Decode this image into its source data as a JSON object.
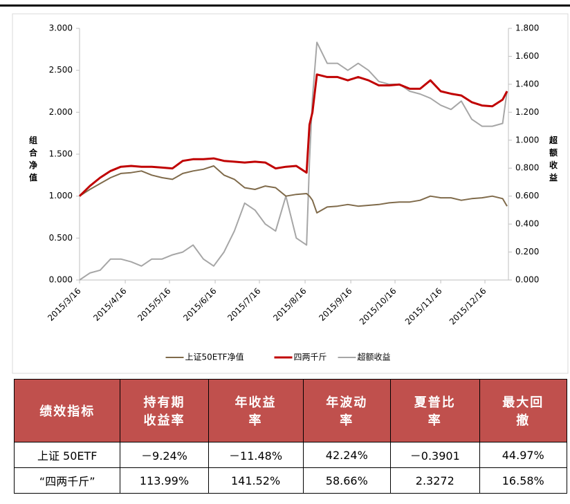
{
  "chart_data": {
    "type": "line",
    "y_label": "组合净值",
    "y2_label": "超额收益",
    "x": [
      "2015/3/16",
      "2015/3/23",
      "2015/3/30",
      "2015/4/6",
      "2015/4/13",
      "2015/4/20",
      "2015/4/27",
      "2015/5/4",
      "2015/5/11",
      "2015/5/18",
      "2015/5/25",
      "2015/6/1",
      "2015/6/8",
      "2015/6/15",
      "2015/6/22",
      "2015/6/29",
      "2015/7/6",
      "2015/7/13",
      "2015/7/20",
      "2015/7/27",
      "2015/8/3",
      "2015/8/10",
      "2015/8/17",
      "2015/8/19",
      "2015/8/21",
      "2015/8/24",
      "2015/8/31",
      "2015/9/7",
      "2015/9/14",
      "2015/9/21",
      "2015/9/28",
      "2015/10/5",
      "2015/10/12",
      "2015/10/19",
      "2015/10/26",
      "2015/11/2",
      "2015/11/9",
      "2015/11/16",
      "2015/11/23",
      "2015/11/30",
      "2015/12/7",
      "2015/12/14",
      "2015/12/21",
      "2015/12/28",
      "2015/12/31"
    ],
    "xlim": [
      "2015/3/16",
      "2015/12/31"
    ],
    "xticks": [
      "2015/3/16",
      "2015/4/16",
      "2015/5/16",
      "2015/6/16",
      "2015/7/16",
      "2015/8/16",
      "2015/9/16",
      "2015/10/16",
      "2015/11/16",
      "2015/12/16"
    ],
    "ylim": [
      0,
      3
    ],
    "yticks": [
      {
        "value": 0,
        "label": "0.000"
      },
      {
        "value": 0.5,
        "label": "0.500"
      },
      {
        "value": 1,
        "label": "1.000"
      },
      {
        "value": 1.5,
        "label": "1.500"
      },
      {
        "value": 2,
        "label": "2.000"
      },
      {
        "value": 2.5,
        "label": "2.500"
      },
      {
        "value": 3,
        "label": "3.000"
      }
    ],
    "y2lim": [
      0,
      1.8
    ],
    "y2ticks": [
      {
        "value": 0,
        "label": "0.000"
      },
      {
        "value": 0.2,
        "label": "0.200"
      },
      {
        "value": 0.4,
        "label": "0.400"
      },
      {
        "value": 0.6,
        "label": "0.600"
      },
      {
        "value": 0.8,
        "label": "0.800"
      },
      {
        "value": 1,
        "label": "1.000"
      },
      {
        "value": 1.2,
        "label": "1.200"
      },
      {
        "value": 1.4,
        "label": "1.400"
      },
      {
        "value": 1.6,
        "label": "1.600"
      },
      {
        "value": 1.8,
        "label": "1.800"
      }
    ],
    "legend": "bottom",
    "series": [
      {
        "name": "上证50ETF净值",
        "color": "#7f6a4a",
        "values": [
          1.0,
          1.08,
          1.15,
          1.22,
          1.27,
          1.28,
          1.3,
          1.25,
          1.22,
          1.2,
          1.27,
          1.3,
          1.32,
          1.36,
          1.25,
          1.2,
          1.1,
          1.08,
          1.12,
          1.1,
          1.0,
          1.02,
          1.03,
          1.0,
          0.95,
          0.8,
          0.87,
          0.88,
          0.9,
          0.88,
          0.89,
          0.9,
          0.92,
          0.93,
          0.93,
          0.95,
          1.0,
          0.98,
          0.98,
          0.95,
          0.97,
          0.98,
          1.0,
          0.97,
          0.88
        ]
      },
      {
        "name": "四两千斤",
        "color": "#c00000",
        "values": [
          1.0,
          1.12,
          1.22,
          1.3,
          1.35,
          1.36,
          1.35,
          1.35,
          1.34,
          1.33,
          1.42,
          1.44,
          1.44,
          1.45,
          1.42,
          1.41,
          1.4,
          1.41,
          1.4,
          1.33,
          1.35,
          1.36,
          1.28,
          1.85,
          2.0,
          2.45,
          2.42,
          2.42,
          2.38,
          2.42,
          2.38,
          2.32,
          2.32,
          2.33,
          2.28,
          2.28,
          2.38,
          2.25,
          2.22,
          2.2,
          2.12,
          2.08,
          2.07,
          2.15,
          2.25
        ]
      },
      {
        "name": "超额收益",
        "color": "#a6a6a6",
        "axis": "y2",
        "values": [
          0.0,
          0.05,
          0.07,
          0.15,
          0.15,
          0.13,
          0.1,
          0.15,
          0.15,
          0.18,
          0.2,
          0.25,
          0.15,
          0.1,
          0.2,
          0.35,
          0.55,
          0.5,
          0.4,
          0.35,
          0.6,
          0.3,
          0.25,
          0.85,
          1.3,
          1.7,
          1.55,
          1.55,
          1.5,
          1.55,
          1.5,
          1.42,
          1.4,
          1.4,
          1.35,
          1.33,
          1.3,
          1.25,
          1.22,
          1.28,
          1.15,
          1.1,
          1.1,
          1.12,
          1.35
        ]
      }
    ]
  },
  "table": {
    "header": [
      "绩效指标",
      "持有期收益率",
      "年收益率",
      "年波动率",
      "夏普比率",
      "最大回撤"
    ],
    "rows": [
      [
        "上证 50ETF",
        "－9.24%",
        "－11.48%",
        "42.24%",
        "－0.3901",
        "44.97%"
      ],
      [
        "“四两千斤”",
        "113.99%",
        "141.52%",
        "58.66%",
        "2.3272",
        "16.58%"
      ]
    ]
  }
}
